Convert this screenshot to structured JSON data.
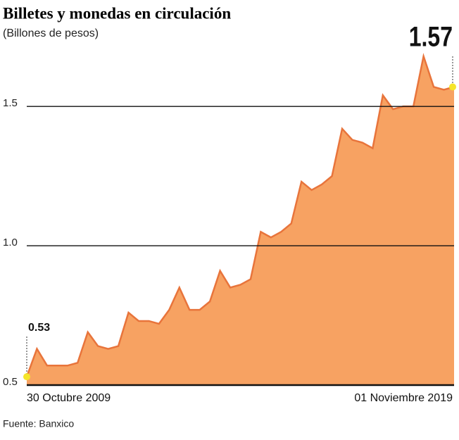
{
  "chart_data": {
    "type": "area",
    "title": "Billetes y monedas en circulación",
    "subtitle": "(Billones de pesos)",
    "source": "Fuente: Banxico",
    "categories": [
      "30 Octubre 2009",
      null,
      null,
      null,
      null,
      null,
      null,
      null,
      null,
      null,
      null,
      null,
      null,
      null,
      null,
      null,
      null,
      null,
      null,
      null,
      null,
      null,
      null,
      null,
      null,
      null,
      null,
      null,
      null,
      null,
      null,
      null,
      null,
      null,
      null,
      null,
      null,
      null,
      null,
      null,
      null,
      null,
      "01 Noviembre 2019"
    ],
    "values": [
      0.53,
      0.63,
      0.57,
      0.57,
      0.57,
      0.58,
      0.69,
      0.64,
      0.63,
      0.64,
      0.76,
      0.73,
      0.73,
      0.72,
      0.77,
      0.85,
      0.77,
      0.77,
      0.8,
      0.91,
      0.85,
      0.86,
      0.88,
      1.05,
      1.03,
      1.05,
      1.08,
      1.23,
      1.2,
      1.22,
      1.25,
      1.42,
      1.38,
      1.37,
      1.35,
      1.54,
      1.49,
      1.5,
      1.5,
      1.68,
      1.57,
      1.56,
      1.57
    ],
    "color": "#f7a262",
    "line_color": "#e8743b",
    "marker_color": "#f5e52a",
    "ylim": [
      0.5,
      1.7
    ],
    "yticks": [
      0.5,
      {
        "value": 1,
        "label": "1.0"
      },
      1.5
    ],
    "grid": true
  }
}
